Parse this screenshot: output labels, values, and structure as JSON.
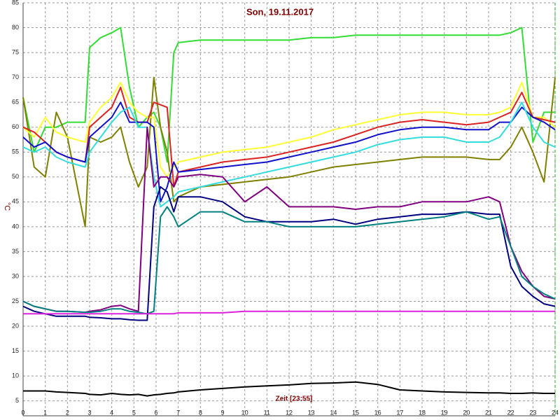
{
  "chart_data": {
    "type": "line",
    "title": "Son, 19.11.2017",
    "y_label": "°C",
    "annotation": "Zeit [23:55]",
    "grid": true,
    "xlim": [
      0,
      24
    ],
    "ylim": [
      2,
      85
    ],
    "xticks": [
      0,
      1,
      2,
      3,
      4,
      5,
      6,
      7,
      8,
      9,
      10,
      11,
      12,
      13,
      14,
      15,
      16,
      17,
      18,
      19,
      20,
      21,
      22,
      23,
      24
    ],
    "yticks": [
      5,
      10,
      15,
      20,
      25,
      30,
      35,
      40,
      45,
      50,
      55,
      60,
      65,
      70,
      75,
      80,
      85
    ],
    "x": [
      0,
      0.5,
      1,
      1.5,
      2,
      2.8,
      3,
      3.5,
      4,
      4.4,
      4.8,
      5.2,
      5.6,
      5.9,
      6.2,
      6.5,
      6.8,
      7,
      8,
      9,
      10,
      11,
      12,
      13,
      14,
      15,
      16,
      17,
      18,
      19,
      20,
      21,
      21.5,
      22,
      22.5,
      23,
      23.5,
      24
    ],
    "series": [
      {
        "color": "#33dd33",
        "values": [
          66,
          55,
          60,
          60,
          61,
          61,
          76,
          78,
          79,
          80,
          68,
          60,
          62,
          63,
          60,
          53,
          75,
          77,
          77.5,
          77.5,
          77.5,
          77.5,
          77.5,
          78,
          78,
          78.5,
          78.5,
          78.5,
          78.5,
          78.5,
          78.5,
          78.5,
          78.5,
          79,
          80,
          57,
          63,
          63
        ]
      },
      {
        "color": "#808000",
        "values": [
          66,
          52,
          50,
          63,
          58,
          40,
          58,
          57,
          58,
          60,
          53,
          48,
          52,
          70,
          60,
          55,
          45,
          46,
          48,
          48.5,
          49,
          49.5,
          50,
          51,
          52,
          52.5,
          53,
          53.5,
          54,
          54,
          54,
          53.5,
          53.5,
          56,
          60,
          55,
          49,
          70
        ]
      },
      {
        "color": "#ffff33",
        "values": [
          60,
          58,
          62,
          59,
          58,
          57,
          61,
          64,
          66,
          69,
          65,
          63,
          62,
          62,
          52,
          50,
          52,
          53,
          54,
          55,
          55.5,
          56,
          57,
          58,
          59.5,
          60.5,
          61.5,
          62.5,
          63,
          63,
          62.5,
          62.5,
          63,
          64,
          69,
          62,
          62,
          60
        ]
      },
      {
        "color": "#dd2222",
        "values": [
          60,
          59,
          57,
          55,
          54,
          53,
          60,
          62,
          64,
          68,
          62,
          61,
          61,
          65,
          64.5,
          64,
          48,
          51,
          52,
          53,
          53.5,
          54,
          55,
          56,
          57,
          58.5,
          60,
          61,
          61.5,
          61,
          60.5,
          61,
          62,
          63,
          67,
          62,
          61.5,
          61
        ]
      },
      {
        "color": "#1111cc",
        "values": [
          58,
          56,
          57,
          55,
          54,
          53,
          58,
          60,
          62,
          65,
          61,
          61,
          61,
          60,
          45,
          48,
          53,
          51,
          51.5,
          52,
          52.5,
          53,
          54,
          55,
          56,
          57,
          58.5,
          59.5,
          60,
          60,
          59.5,
          59.5,
          61,
          61,
          64,
          62,
          61,
          59.5
        ]
      },
      {
        "color": "#33dddd",
        "values": [
          56,
          55,
          56,
          54,
          53,
          52,
          55,
          58,
          61,
          63,
          64,
          60,
          60,
          50,
          44,
          45,
          46,
          47,
          48,
          49,
          50,
          51,
          52,
          53,
          54,
          55,
          56.5,
          57.5,
          58,
          58,
          57,
          57,
          58,
          61,
          65,
          60,
          57,
          56
        ]
      },
      {
        "color": "#800080",
        "values": [
          25,
          24,
          23.5,
          23,
          23,
          22.8,
          23,
          23.3,
          24,
          24.2,
          23.5,
          23,
          60,
          48,
          50,
          50,
          48,
          50,
          50.5,
          50,
          45,
          48,
          44,
          44,
          44,
          43.5,
          44,
          44,
          45,
          45,
          45,
          46,
          45,
          36,
          31,
          28,
          26,
          25.5
        ]
      },
      {
        "color": "#000080",
        "values": [
          24,
          23,
          22.5,
          22,
          22,
          22,
          21.8,
          21.7,
          21.5,
          21.5,
          21.3,
          21.2,
          21.2,
          44,
          48,
          47,
          43,
          46,
          46,
          45,
          42,
          41,
          41,
          41,
          41.5,
          40.5,
          41.5,
          42,
          42.5,
          42.5,
          43,
          42.5,
          42.5,
          32,
          28,
          26,
          24.5,
          24
        ]
      },
      {
        "color": "#008080",
        "values": [
          25,
          24,
          23.5,
          23,
          23,
          22.8,
          22.8,
          23,
          23.5,
          23.5,
          23,
          22.8,
          22.5,
          23,
          42,
          44,
          42,
          40,
          43,
          43,
          41,
          41,
          40,
          40,
          40,
          40,
          40.5,
          41,
          41.5,
          42,
          43,
          41.5,
          42,
          36,
          30,
          28,
          26.5,
          25.5
        ]
      },
      {
        "color": "#dd22dd",
        "values": [
          22.5,
          22.5,
          22.5,
          22.5,
          22.5,
          22.5,
          22.5,
          22.5,
          22.5,
          22.5,
          22.5,
          22.5,
          22.5,
          22.5,
          22.5,
          22.5,
          22.5,
          22.7,
          22.7,
          22.7,
          23,
          23,
          23,
          23,
          23,
          23,
          23,
          23,
          23,
          23,
          23,
          23,
          23,
          23,
          23,
          23,
          23,
          23
        ]
      },
      {
        "color": "#000000",
        "values": [
          7,
          7,
          7,
          6.8,
          6.7,
          6.5,
          6.3,
          6.2,
          6.5,
          6.3,
          6.2,
          6.3,
          6,
          6.2,
          6.3,
          6.5,
          6.6,
          6.8,
          7.2,
          7.5,
          7.8,
          8,
          8.2,
          8.5,
          8.6,
          8.8,
          8.3,
          7.2,
          7,
          6.8,
          6.7,
          6.6,
          6.6,
          6.5,
          6.5,
          6.6,
          6.5,
          6.5
        ]
      }
    ]
  }
}
